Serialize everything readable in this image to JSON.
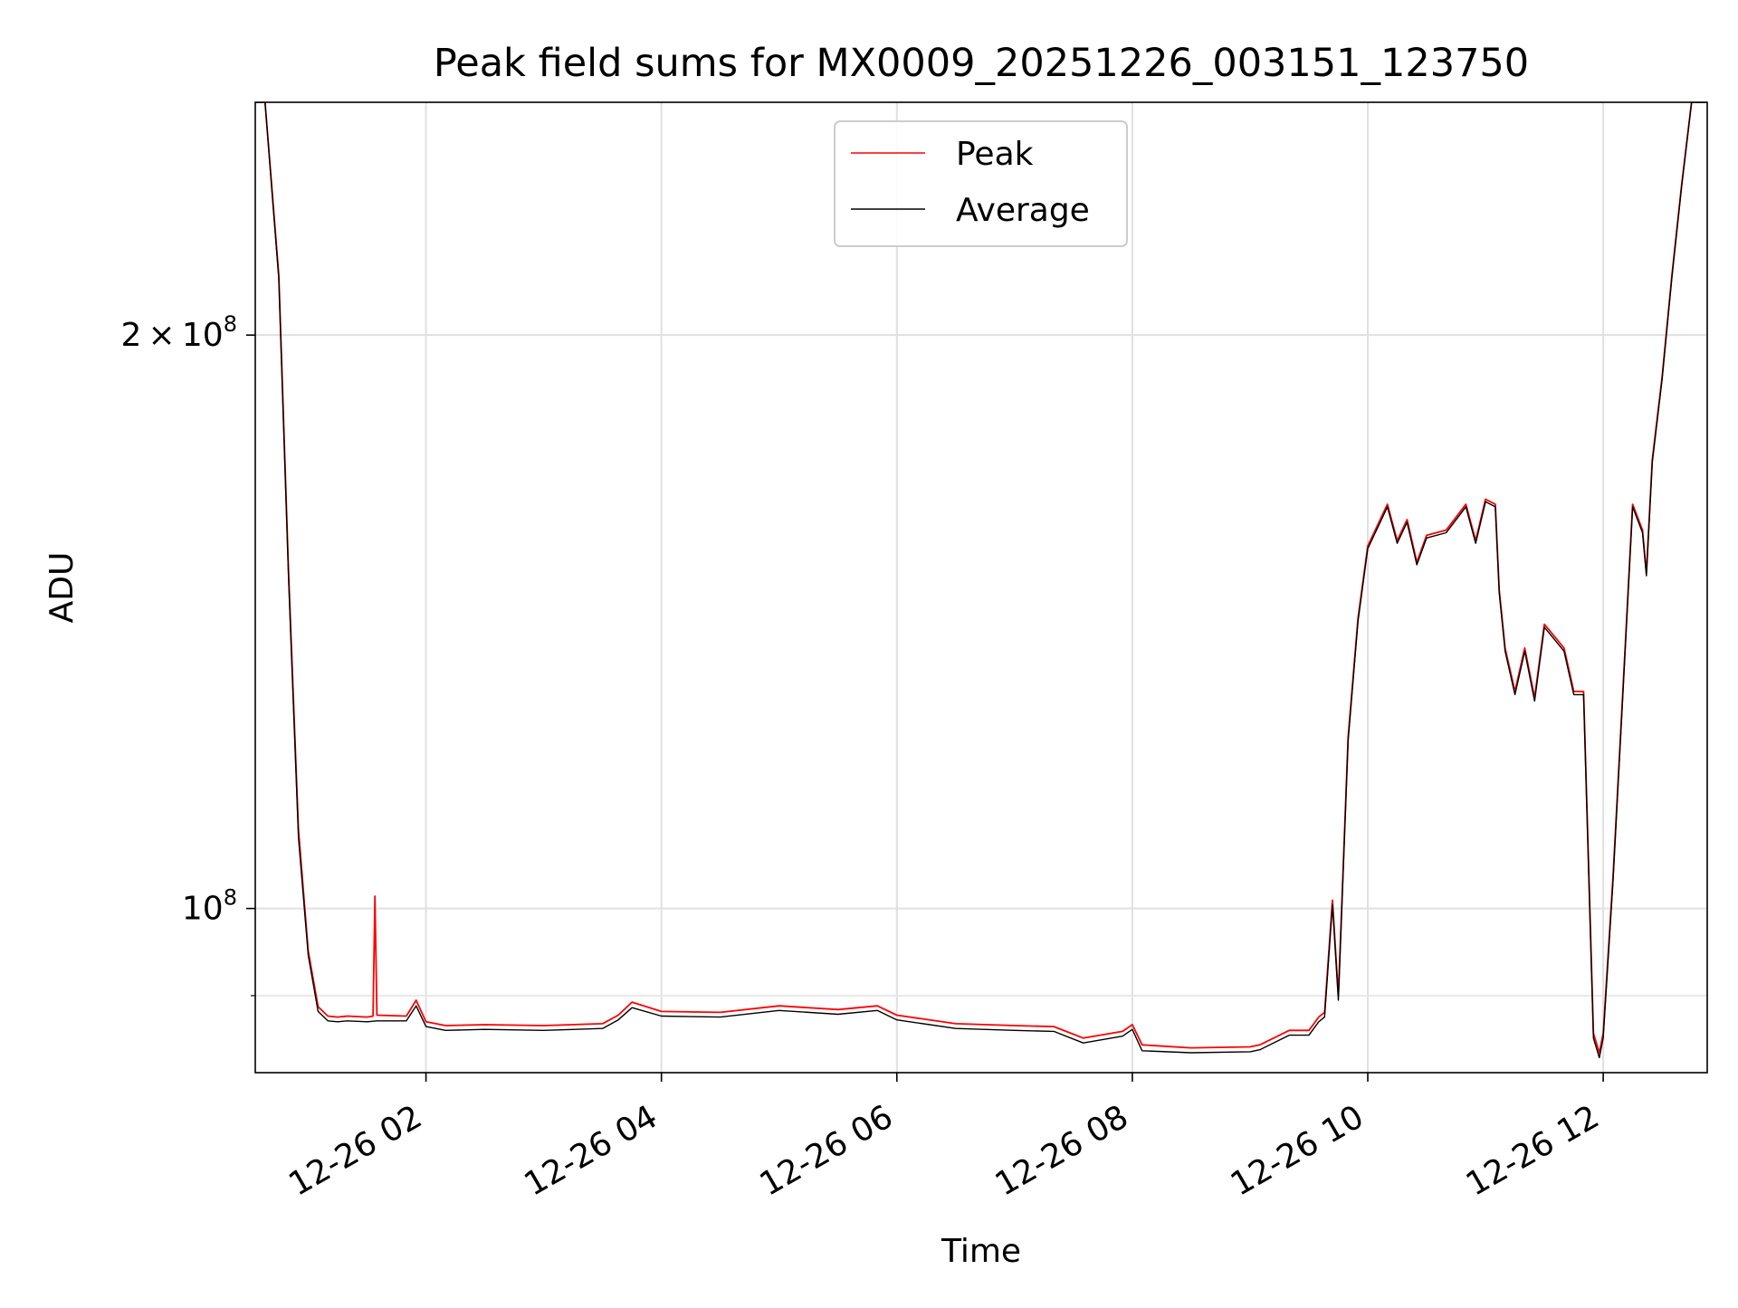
{
  "chart_data": {
    "type": "line",
    "title": "Peak field sums for MX0009_20251226_003151_123750",
    "xlabel": "Time",
    "ylabel": "ADU",
    "yscale": "log",
    "xlim": [
      "2025-12-26 00:33",
      "2025-12-26 12:53"
    ],
    "ylim": [
      82000000,
      265000000
    ],
    "x_ticks": [
      "2025-12-26 02:00",
      "2025-12-26 04:00",
      "2025-12-26 06:00",
      "2025-12-26 08:00",
      "2025-12-26 10:00",
      "2025-12-26 12:00"
    ],
    "x_tick_labels": [
      "12-26 02",
      "12-26 04",
      "12-26 06",
      "12-26 08",
      "12-26 10",
      "12-26 12"
    ],
    "y_major_ticks": [
      100000000,
      200000000
    ],
    "y_major_tick_labels": [
      {
        "mantissa": "",
        "base": "10",
        "exp": "8"
      },
      {
        "mantissa": "2",
        "base": "10",
        "exp": "8"
      }
    ],
    "y_minor_gridlines": [
      90000000
    ],
    "grid": true,
    "legend": {
      "position": "top-center"
    },
    "series": [
      {
        "name": "Peak",
        "color": "#ff0000",
        "x": [
          "2025-12-26 00:33",
          "2025-12-26 00:38",
          "2025-12-26 00:45",
          "2025-12-26 00:50",
          "2025-12-26 00:55",
          "2025-12-26 01:00",
          "2025-12-26 01:05",
          "2025-12-26 01:10",
          "2025-12-26 01:15",
          "2025-12-26 01:20",
          "2025-12-26 01:30",
          "2025-12-26 01:33",
          "2025-12-26 01:34",
          "2025-12-26 01:35",
          "2025-12-26 01:50",
          "2025-12-26 01:55",
          "2025-12-26 02:00",
          "2025-12-26 02:10",
          "2025-12-26 02:30",
          "2025-12-26 03:00",
          "2025-12-26 03:30",
          "2025-12-26 03:38",
          "2025-12-26 03:45",
          "2025-12-26 04:00",
          "2025-12-26 04:30",
          "2025-12-26 05:00",
          "2025-12-26 05:30",
          "2025-12-26 05:50",
          "2025-12-26 06:00",
          "2025-12-26 06:30",
          "2025-12-26 07:00",
          "2025-12-26 07:20",
          "2025-12-26 07:35",
          "2025-12-26 07:55",
          "2025-12-26 08:00",
          "2025-12-26 08:05",
          "2025-12-26 08:30",
          "2025-12-26 09:00",
          "2025-12-26 09:05",
          "2025-12-26 09:20",
          "2025-12-26 09:30",
          "2025-12-26 09:35",
          "2025-12-26 09:38",
          "2025-12-26 09:42",
          "2025-12-26 09:45",
          "2025-12-26 09:50",
          "2025-12-26 09:55",
          "2025-12-26 10:00",
          "2025-12-26 10:10",
          "2025-12-26 10:15",
          "2025-12-26 10:20",
          "2025-12-26 10:25",
          "2025-12-26 10:30",
          "2025-12-26 10:40",
          "2025-12-26 10:50",
          "2025-12-26 10:55",
          "2025-12-26 11:00",
          "2025-12-26 11:05",
          "2025-12-26 11:07",
          "2025-12-26 11:10",
          "2025-12-26 11:15",
          "2025-12-26 11:20",
          "2025-12-26 11:25",
          "2025-12-26 11:30",
          "2025-12-26 11:40",
          "2025-12-26 11:45",
          "2025-12-26 11:50",
          "2025-12-26 11:55",
          "2025-12-26 11:58",
          "2025-12-26 12:00",
          "2025-12-26 12:05",
          "2025-12-26 12:10",
          "2025-12-26 12:15",
          "2025-12-26 12:20",
          "2025-12-26 12:22",
          "2025-12-26 12:25",
          "2025-12-26 12:30",
          "2025-12-26 12:35",
          "2025-12-26 12:40",
          "2025-12-26 12:45",
          "2025-12-26 12:50",
          "2025-12-26 12:53"
        ],
        "y": [
          265000000,
          265000000,
          215000000,
          150000000,
          110000000,
          95000000,
          88800000,
          87800000,
          87700000,
          87800000,
          87700000,
          87800000,
          101500000,
          87900000,
          87800000,
          89500000,
          87200000,
          86800000,
          86900000,
          86800000,
          87000000,
          87900000,
          89300000,
          88300000,
          88200000,
          88900000,
          88500000,
          88900000,
          87900000,
          87000000,
          86800000,
          86700000,
          85500000,
          86200000,
          86900000,
          84800000,
          84500000,
          84600000,
          84800000,
          86300000,
          86300000,
          87700000,
          88200000,
          101000000,
          90000000,
          123000000,
          142000000,
          155000000,
          163000000,
          156000000,
          160000000,
          152000000,
          157000000,
          158000000,
          163000000,
          156000000,
          164000000,
          163000000,
          147000000,
          137000000,
          130000000,
          137000000,
          129000000,
          141000000,
          137000000,
          130000000,
          130000000,
          86000000,
          84000000,
          86000000,
          104000000,
          130000000,
          163000000,
          158000000,
          150000000,
          172000000,
          190000000,
          215000000,
          240000000,
          265000000,
          265000000,
          265000000
        ]
      },
      {
        "name": "Average",
        "color": "#000000",
        "x": [
          "2025-12-26 00:33",
          "2025-12-26 00:38",
          "2025-12-26 00:45",
          "2025-12-26 00:50",
          "2025-12-26 00:55",
          "2025-12-26 01:00",
          "2025-12-26 01:05",
          "2025-12-26 01:10",
          "2025-12-26 01:15",
          "2025-12-26 01:20",
          "2025-12-26 01:30",
          "2025-12-26 01:35",
          "2025-12-26 01:50",
          "2025-12-26 01:55",
          "2025-12-26 02:00",
          "2025-12-26 02:10",
          "2025-12-26 02:30",
          "2025-12-26 03:00",
          "2025-12-26 03:30",
          "2025-12-26 03:38",
          "2025-12-26 03:45",
          "2025-12-26 04:00",
          "2025-12-26 04:30",
          "2025-12-26 05:00",
          "2025-12-26 05:30",
          "2025-12-26 05:50",
          "2025-12-26 06:00",
          "2025-12-26 06:30",
          "2025-12-26 07:00",
          "2025-12-26 07:20",
          "2025-12-26 07:35",
          "2025-12-26 07:55",
          "2025-12-26 08:00",
          "2025-12-26 08:05",
          "2025-12-26 08:30",
          "2025-12-26 09:00",
          "2025-12-26 09:05",
          "2025-12-26 09:20",
          "2025-12-26 09:30",
          "2025-12-26 09:35",
          "2025-12-26 09:38",
          "2025-12-26 09:42",
          "2025-12-26 09:45",
          "2025-12-26 09:50",
          "2025-12-26 09:55",
          "2025-12-26 10:00",
          "2025-12-26 10:10",
          "2025-12-26 10:15",
          "2025-12-26 10:20",
          "2025-12-26 10:25",
          "2025-12-26 10:30",
          "2025-12-26 10:40",
          "2025-12-26 10:50",
          "2025-12-26 10:55",
          "2025-12-26 11:00",
          "2025-12-26 11:05",
          "2025-12-26 11:07",
          "2025-12-26 11:10",
          "2025-12-26 11:15",
          "2025-12-26 11:20",
          "2025-12-26 11:25",
          "2025-12-26 11:30",
          "2025-12-26 11:40",
          "2025-12-26 11:45",
          "2025-12-26 11:50",
          "2025-12-26 11:55",
          "2025-12-26 11:58",
          "2025-12-26 12:00",
          "2025-12-26 12:05",
          "2025-12-26 12:10",
          "2025-12-26 12:15",
          "2025-12-26 12:20",
          "2025-12-26 12:22",
          "2025-12-26 12:25",
          "2025-12-26 12:30",
          "2025-12-26 12:35",
          "2025-12-26 12:40",
          "2025-12-26 12:45",
          "2025-12-26 12:50",
          "2025-12-26 12:53"
        ],
        "y": [
          265000000,
          265000000,
          214000000,
          149000000,
          109000000,
          94500000,
          88300000,
          87300000,
          87200000,
          87300000,
          87200000,
          87300000,
          87300000,
          88900000,
          86700000,
          86300000,
          86400000,
          86300000,
          86500000,
          87400000,
          88700000,
          87800000,
          87700000,
          88400000,
          88000000,
          88400000,
          87400000,
          86500000,
          86300000,
          86200000,
          85000000,
          85700000,
          86400000,
          84200000,
          84000000,
          84100000,
          84300000,
          85800000,
          85800000,
          87200000,
          87700000,
          100500000,
          89500000,
          122500000,
          141500000,
          154500000,
          162500000,
          155500000,
          159500000,
          151500000,
          156500000,
          157500000,
          162500000,
          155500000,
          163500000,
          162500000,
          146500000,
          136500000,
          129500000,
          136500000,
          128500000,
          140500000,
          136500000,
          129500000,
          129500000,
          85500000,
          83500000,
          85500000,
          103500000,
          129500000,
          162500000,
          157500000,
          149500000,
          171500000,
          189500000,
          214500000,
          239500000,
          265000000,
          265000000,
          265000000
        ]
      }
    ]
  }
}
